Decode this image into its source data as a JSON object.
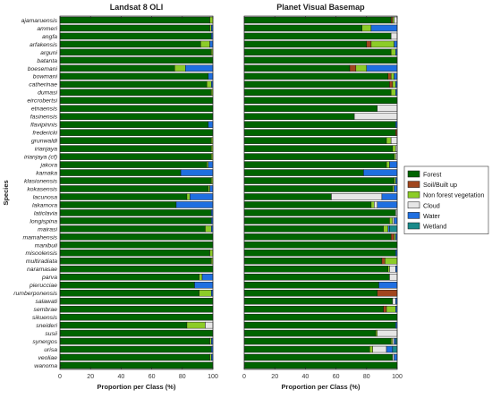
{
  "chart_data": {
    "type": "bar",
    "orientation": "horizontal",
    "stacked": true,
    "ylabel": "Species",
    "legend_position": "right",
    "categories": [
      "ajamaruensis",
      "ammeri",
      "angfa",
      "arfakensis",
      "arguni",
      "batanta",
      "boesemani",
      "bowmani",
      "catherinae",
      "dumasi",
      "eircrobertsi",
      "etnaensis",
      "fasinensis",
      "flavipinnis",
      "fredericki",
      "grunwaldi",
      "irianjaya",
      "irianjaya  (cf)",
      "jakora",
      "kamaka",
      "klasionensis",
      "kokasensis",
      "lacunosa",
      "lakamora",
      "laticlavia",
      "longispina",
      "mairasi",
      "mamahensis",
      "manibuii",
      "misoolensis",
      "multiradiata",
      "naramasae",
      "parva",
      "pierucciae",
      "rumberponensis",
      "salawati",
      "sembrae",
      "sikuensis",
      "sneideri",
      "susii",
      "synergos",
      "urisa",
      "veoliae",
      "wanoma"
    ],
    "classes": [
      {
        "name": "Forest",
        "color": "#006400"
      },
      {
        "name": "Soil/Built up",
        "color": "#a0461e"
      },
      {
        "name": "Non forest vegetation",
        "color": "#8ccc28"
      },
      {
        "name": "Cloud",
        "color": "#e6e6e6"
      },
      {
        "name": "Water",
        "color": "#1f6fe0"
      },
      {
        "name": "Wetland",
        "color": "#1a8a8a"
      }
    ],
    "panels": [
      {
        "title": "Landsat 8 OLI",
        "xlabel": "Proportion per Class (%)",
        "xlim": [
          0,
          100
        ],
        "xticks": [
          0,
          20,
          40,
          60,
          80,
          100
        ],
        "show_category_labels": true,
        "values": [
          [
            98,
            0,
            2,
            0,
            0,
            0
          ],
          [
            98,
            0,
            1,
            0,
            1,
            0
          ],
          [
            99,
            0,
            0,
            0,
            1,
            0
          ],
          [
            92,
            0,
            6,
            0,
            2,
            0
          ],
          [
            99,
            0,
            1,
            0,
            0,
            0
          ],
          [
            100,
            0,
            0,
            0,
            0,
            0
          ],
          [
            75,
            0,
            7,
            0,
            18,
            0
          ],
          [
            97,
            0,
            0,
            0,
            3,
            0
          ],
          [
            96,
            0,
            3,
            0,
            1,
            0
          ],
          [
            99,
            0,
            1,
            0,
            0,
            0
          ],
          [
            100,
            0,
            0,
            0,
            0,
            0
          ],
          [
            100,
            0,
            0,
            0,
            0,
            0
          ],
          [
            100,
            0,
            0,
            0,
            0,
            0
          ],
          [
            97,
            0,
            0,
            0,
            3,
            0
          ],
          [
            100,
            0,
            0,
            0,
            0,
            0
          ],
          [
            99,
            0,
            1,
            0,
            0,
            0
          ],
          [
            99,
            0,
            1,
            0,
            0,
            0
          ],
          [
            99,
            0,
            1,
            0,
            0,
            0
          ],
          [
            96,
            0,
            1,
            0,
            3,
            0
          ],
          [
            79,
            0,
            0,
            0,
            21,
            0
          ],
          [
            99,
            0,
            1,
            0,
            0,
            0
          ],
          [
            97,
            0,
            1,
            0,
            2,
            0
          ],
          [
            83,
            0,
            2,
            0,
            15,
            0
          ],
          [
            76,
            0,
            0,
            0,
            24,
            0
          ],
          [
            99,
            0,
            0,
            0,
            1,
            0
          ],
          [
            99,
            0,
            0,
            0,
            1,
            0
          ],
          [
            95,
            0,
            4,
            0,
            1,
            0
          ],
          [
            100,
            0,
            0,
            0,
            0,
            0
          ],
          [
            100,
            0,
            0,
            0,
            0,
            0
          ],
          [
            98,
            0,
            2,
            0,
            0,
            0
          ],
          [
            99,
            0,
            1,
            0,
            0,
            0
          ],
          [
            100,
            0,
            0,
            0,
            0,
            0
          ],
          [
            91,
            0,
            2,
            0,
            7,
            0
          ],
          [
            88,
            0,
            0,
            0,
            12,
            0
          ],
          [
            91,
            0,
            8,
            0,
            1,
            0
          ],
          [
            100,
            0,
            0,
            0,
            0,
            0
          ],
          [
            100,
            0,
            0,
            0,
            0,
            0
          ],
          [
            100,
            0,
            0,
            0,
            0,
            0
          ],
          [
            83,
            0,
            12,
            5,
            0,
            0
          ],
          [
            100,
            0,
            0,
            0,
            0,
            0
          ],
          [
            98,
            0,
            1,
            0,
            1,
            0
          ],
          [
            99,
            0,
            0,
            0,
            1,
            0
          ],
          [
            98,
            0,
            1,
            0,
            1,
            0
          ],
          [
            100,
            0,
            0,
            0,
            0,
            0
          ]
        ]
      },
      {
        "title": "Planet Visual Basemap",
        "xlabel": "Proportion per Class (%)",
        "xlim": [
          0,
          100
        ],
        "xticks": [
          0,
          20,
          40,
          60,
          80,
          100
        ],
        "show_category_labels": false,
        "values": [
          [
            96,
            1,
            1,
            2,
            0,
            0
          ],
          [
            77,
            0,
            6,
            0,
            17,
            0
          ],
          [
            96,
            0,
            0,
            4,
            0,
            0
          ],
          [
            80,
            3,
            15,
            0,
            2,
            0
          ],
          [
            96,
            0,
            3,
            0,
            1,
            0
          ],
          [
            100,
            0,
            0,
            0,
            0,
            0
          ],
          [
            69,
            4,
            7,
            0,
            20,
            0
          ],
          [
            94,
            2,
            2,
            0,
            2,
            0
          ],
          [
            95,
            2,
            2,
            0,
            1,
            0
          ],
          [
            96,
            0,
            3,
            0,
            1,
            0
          ],
          [
            100,
            0,
            0,
            0,
            0,
            0
          ],
          [
            87,
            0,
            0,
            13,
            0,
            0
          ],
          [
            72,
            0,
            0,
            28,
            0,
            0
          ],
          [
            99,
            0,
            0,
            0,
            1,
            0
          ],
          [
            99,
            1,
            0,
            0,
            0,
            0
          ],
          [
            93,
            0,
            3,
            4,
            0,
            0
          ],
          [
            97,
            0,
            2,
            1,
            0,
            0
          ],
          [
            98,
            0,
            1,
            1,
            0,
            0
          ],
          [
            93,
            0,
            2,
            0,
            5,
            0
          ],
          [
            78,
            0,
            0,
            0,
            22,
            0
          ],
          [
            98,
            0,
            1,
            0,
            1,
            0
          ],
          [
            97,
            0,
            1,
            0,
            2,
            0
          ],
          [
            57,
            0,
            0,
            33,
            10,
            0
          ],
          [
            83,
            0,
            2,
            2,
            13,
            0
          ],
          [
            99,
            0,
            0,
            1,
            0,
            0
          ],
          [
            95,
            0,
            2,
            1,
            2,
            0
          ],
          [
            91,
            0,
            3,
            0,
            1,
            5
          ],
          [
            96,
            2,
            1,
            0,
            1,
            0
          ],
          [
            100,
            0,
            0,
            0,
            0,
            0
          ],
          [
            99,
            0,
            0,
            0,
            1,
            0
          ],
          [
            90,
            2,
            8,
            0,
            0,
            0
          ],
          [
            94,
            0,
            1,
            4,
            1,
            0
          ],
          [
            95,
            0,
            0,
            5,
            0,
            0
          ],
          [
            88,
            0,
            0,
            0,
            12,
            0
          ],
          [
            87,
            13,
            0,
            0,
            0,
            0
          ],
          [
            97,
            0,
            0,
            2,
            1,
            0
          ],
          [
            91,
            2,
            6,
            0,
            1,
            0
          ],
          [
            100,
            0,
            0,
            0,
            0,
            0
          ],
          [
            99,
            0,
            0,
            0,
            1,
            0
          ],
          [
            86,
            0,
            1,
            13,
            0,
            0
          ],
          [
            96,
            0,
            1,
            1,
            1,
            1
          ],
          [
            82,
            0,
            2,
            9,
            4,
            3
          ],
          [
            97,
            0,
            0,
            1,
            2,
            0
          ],
          [
            100,
            0,
            0,
            0,
            0,
            0
          ]
        ]
      }
    ]
  }
}
